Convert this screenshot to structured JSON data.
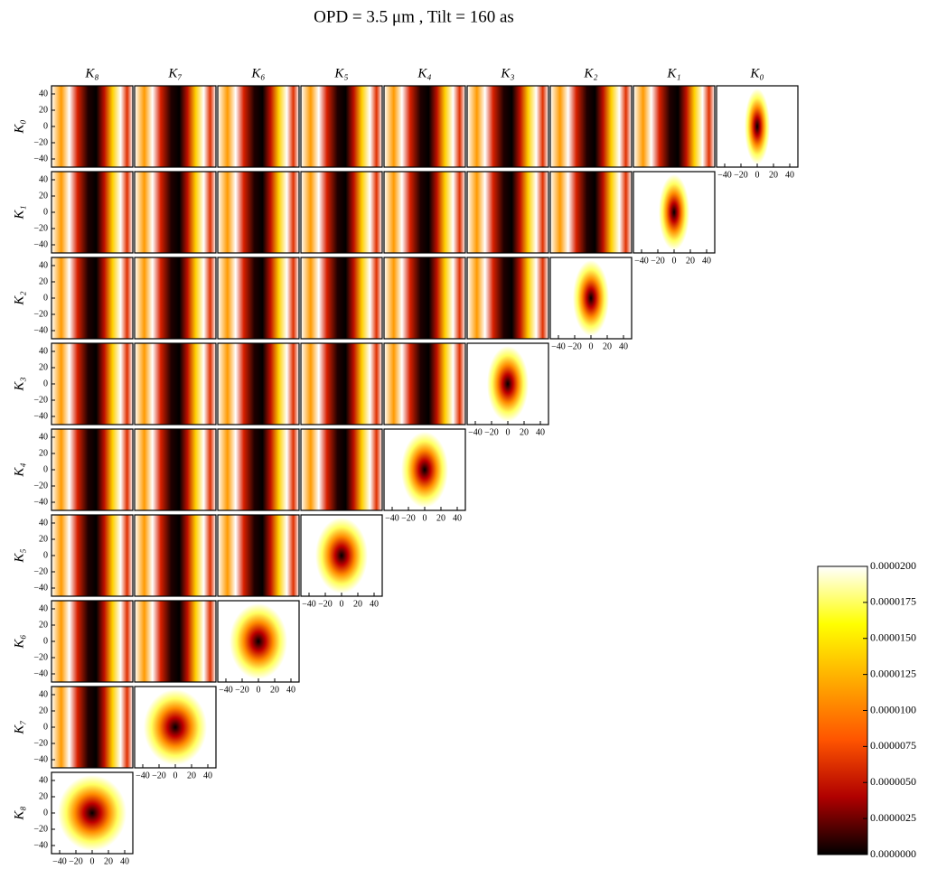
{
  "chart_data": {
    "type": "heatmap",
    "title": "OPD = 3.5 μm , Tilt = 160 as",
    "columns": [
      "K₈",
      "K₇",
      "K₆",
      "K₅",
      "K₄",
      "K₃",
      "K₂",
      "K₁",
      "K₀"
    ],
    "rows": [
      "K₀",
      "K₁",
      "K₂",
      "K₃",
      "K₄",
      "K₅",
      "K₆",
      "K₇",
      "K₈"
    ],
    "xlim": [
      -50,
      50
    ],
    "ylim": [
      -50,
      50
    ],
    "xticks": [
      {
        "value": -40,
        "label": "−40"
      },
      {
        "value": -20,
        "label": "−20"
      },
      0,
      20,
      40
    ],
    "yticks": [
      40,
      20,
      0,
      {
        "value": -20,
        "label": "−20"
      },
      {
        "value": -40,
        "label": "−40"
      }
    ],
    "colorbar": {
      "colors": [
        "#000000",
        "#b00000",
        "#ff5500",
        "#ffaa00",
        "#ffff00",
        "#ffffff"
      ],
      "lim": [
        0,
        2e-05
      ],
      "ticks": [
        {
          "value": 0,
          "label": "0.0000000"
        },
        {
          "value": 2.5e-06,
          "label": "0.0000025"
        },
        {
          "value": 5e-06,
          "label": "0.0000050"
        },
        {
          "value": 7.5e-06,
          "label": "0.0000075"
        },
        {
          "value": 1e-05,
          "label": "0.0000100"
        },
        {
          "value": 1.25e-05,
          "label": "0.0000125"
        },
        {
          "value": 1.5e-05,
          "label": "0.0000150"
        },
        {
          "value": 1.75e-05,
          "label": "0.0000175"
        },
        {
          "value": 2e-05,
          "label": "0.0000200"
        }
      ]
    }
  }
}
